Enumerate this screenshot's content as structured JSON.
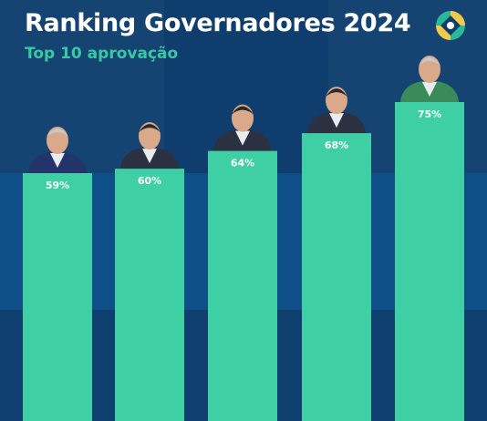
{
  "header": {
    "title": "Ranking Governadores 2024",
    "subtitle": "Top 10 aprovação"
  },
  "colors": {
    "background": "#0b3a6a",
    "bar": "#3ecfa4",
    "subtitle": "#37c9a3",
    "text": "#ffffff"
  },
  "chart_data": {
    "type": "bar",
    "title": "Ranking Governadores 2024",
    "subtitle": "Top 10 aprovação",
    "categories": [
      "",
      "",
      "",
      "",
      ""
    ],
    "values": [
      59,
      60,
      64,
      68,
      75
    ],
    "labels": [
      "59%",
      "60%",
      "64%",
      "68%",
      "75%"
    ],
    "ylim": [
      0,
      100
    ],
    "grid": false,
    "legend": "none",
    "xlabel": "",
    "ylabel": ""
  }
}
